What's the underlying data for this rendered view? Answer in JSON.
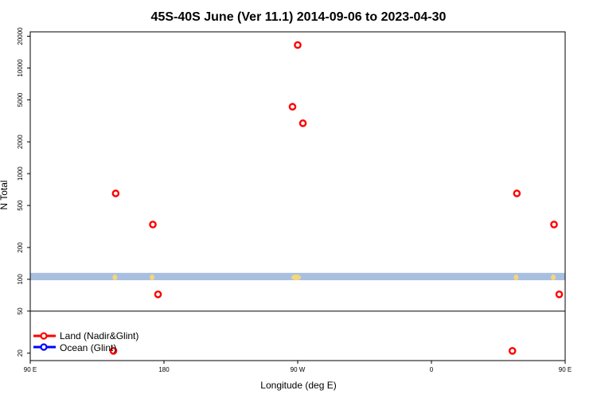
{
  "chart_data": {
    "type": "scatter",
    "title": "45S-40S June (Ver 11.1)   2014-09-06 to 2023-04-30",
    "xlabel": "Longitude (deg E)",
    "ylabel": "N Total",
    "y_scale": "log",
    "xlim": [
      90,
      450
    ],
    "ylim": [
      17,
      22000
    ],
    "x_ticks": [
      {
        "value": 90,
        "label": "90 E"
      },
      {
        "value": 180,
        "label": "180"
      },
      {
        "value": 270,
        "label": "90 W"
      },
      {
        "value": 360,
        "label": "0"
      },
      {
        "value": 450,
        "label": "90 E"
      },
      {
        "value": 540,
        "label": "180"
      }
    ],
    "y_ticks": [
      {
        "value": 20,
        "label": "20"
      },
      {
        "value": 50,
        "label": "50"
      },
      {
        "value": 100,
        "label": "100"
      },
      {
        "value": 200,
        "label": "200"
      },
      {
        "value": 500,
        "label": "500"
      },
      {
        "value": 1000,
        "label": "1000"
      },
      {
        "value": 2000,
        "label": "2000"
      },
      {
        "value": 5000,
        "label": "5000"
      },
      {
        "value": 10000,
        "label": "10000"
      },
      {
        "value": 20000,
        "label": "20000"
      }
    ],
    "reference_line_y": 50,
    "band": {
      "y_min": 98,
      "y_max": 115,
      "color": "#a8bfe0",
      "accent_color": "#f5d77a"
    },
    "band_accents_x": [
      147,
      172,
      269,
      417,
      442
    ],
    "series": [
      {
        "name": "Land (Nadir&Glint)",
        "color": "#ff0000",
        "points": [
          {
            "x": 146,
            "y": 21
          },
          {
            "x": 147.5,
            "y": 650
          },
          {
            "x": 172.5,
            "y": 330
          },
          {
            "x": 176,
            "y": 72
          },
          {
            "x": 266.5,
            "y": 4300
          },
          {
            "x": 270,
            "y": 16500
          },
          {
            "x": 273.5,
            "y": 3000
          },
          {
            "x": 414.5,
            "y": 21
          },
          {
            "x": 417.5,
            "y": 650
          },
          {
            "x": 442.5,
            "y": 330
          },
          {
            "x": 446,
            "y": 72
          }
        ]
      },
      {
        "name": "Ocean (Glint)",
        "color": "#0000ff",
        "points": []
      }
    ],
    "legend_position": "bottom-left"
  }
}
